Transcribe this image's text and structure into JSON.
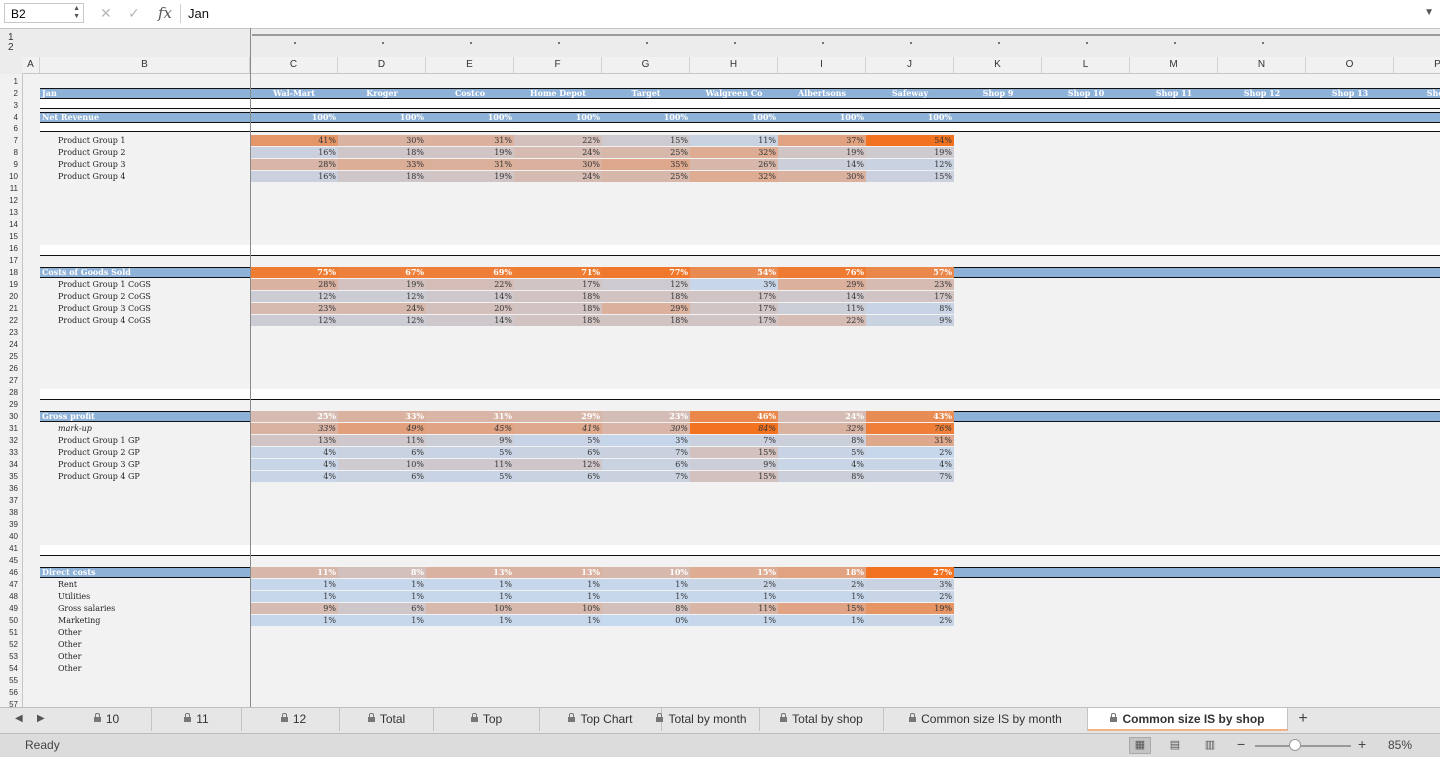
{
  "formula_bar": {
    "cell_ref": "B2",
    "formula": "Jan",
    "fx_label": "fx",
    "cancel_icon": "close-icon",
    "enter_icon": "check-icon"
  },
  "outline_levels": [
    "1",
    "2"
  ],
  "columns": [
    "A",
    "B",
    "C",
    "D",
    "E",
    "F",
    "G",
    "H",
    "I",
    "J",
    "K",
    "L",
    "M",
    "N",
    "O",
    "P"
  ],
  "rows": [
    "1",
    "2",
    "3",
    "4",
    "6",
    "7",
    "8",
    "9",
    "10",
    "11",
    "12",
    "13",
    "14",
    "15",
    "16",
    "17",
    "18",
    "19",
    "20",
    "21",
    "22",
    "23",
    "24",
    "25",
    "26",
    "27",
    "28",
    "29",
    "30",
    "31",
    "32",
    "33",
    "34",
    "35",
    "36",
    "37",
    "38",
    "39",
    "40",
    "41",
    "45",
    "46",
    "47",
    "48",
    "49",
    "50",
    "51",
    "52",
    "53",
    "54",
    "55",
    "56",
    "57"
  ],
  "header_row": {
    "label": "Jan",
    "shops": [
      "Wal-Mart",
      "Kroger",
      "Costco",
      "Home Depot",
      "Target",
      "Walgreen Co",
      "Albertsons",
      "Safeway",
      "Shop 9",
      "Shop 10",
      "Shop 11",
      "Shop 12",
      "Shop 13",
      "Shop"
    ]
  },
  "net_revenue": {
    "label": "Net Revenue",
    "values": [
      "100%",
      "100%",
      "100%",
      "100%",
      "100%",
      "100%",
      "100%",
      "100%"
    ],
    "items": [
      {
        "label": "Product Group 1",
        "values": [
          "41%",
          "30%",
          "31%",
          "22%",
          "15%",
          "11%",
          "37%",
          "54%"
        ],
        "heat": [
          0.7,
          0.45,
          0.47,
          0.3,
          0.18,
          0.08,
          0.6,
          1.0
        ]
      },
      {
        "label": "Product Group 2",
        "values": [
          "16%",
          "18%",
          "19%",
          "24%",
          "25%",
          "32%",
          "19%",
          "19%"
        ],
        "heat": [
          0.1,
          0.22,
          0.25,
          0.35,
          0.4,
          0.52,
          0.24,
          0.18
        ]
      },
      {
        "label": "Product Group 3",
        "values": [
          "28%",
          "33%",
          "31%",
          "30%",
          "35%",
          "26%",
          "14%",
          "12%"
        ],
        "heat": [
          0.42,
          0.5,
          0.48,
          0.46,
          0.55,
          0.4,
          0.12,
          0.08
        ]
      },
      {
        "label": "Product Group 4",
        "values": [
          "16%",
          "18%",
          "19%",
          "24%",
          "25%",
          "32%",
          "30%",
          "15%"
        ],
        "heat": [
          0.1,
          0.22,
          0.25,
          0.35,
          0.4,
          0.52,
          0.46,
          0.1
        ]
      }
    ]
  },
  "cogs": {
    "label": "Costs of Goods Sold",
    "values": [
      "75%",
      "67%",
      "69%",
      "71%",
      "77%",
      "54%",
      "76%",
      "57%"
    ],
    "heat": [
      0.92,
      0.88,
      0.9,
      0.92,
      0.95,
      0.8,
      0.93,
      0.82
    ],
    "items": [
      {
        "label": "Product Group 1 CoGS",
        "values": [
          "28%",
          "19%",
          "22%",
          "17%",
          "12%",
          "3%",
          "29%",
          "23%"
        ],
        "heat": [
          0.45,
          0.28,
          0.33,
          0.25,
          0.18,
          0.04,
          0.47,
          0.35
        ]
      },
      {
        "label": "Product Group 2 CoGS",
        "values": [
          "12%",
          "12%",
          "14%",
          "18%",
          "18%",
          "17%",
          "14%",
          "17%"
        ],
        "heat": [
          0.15,
          0.15,
          0.2,
          0.26,
          0.26,
          0.25,
          0.2,
          0.25
        ]
      },
      {
        "label": "Product Group 3 CoGS",
        "values": [
          "23%",
          "24%",
          "20%",
          "18%",
          "29%",
          "17%",
          "11%",
          "8%"
        ],
        "heat": [
          0.36,
          0.38,
          0.3,
          0.26,
          0.47,
          0.25,
          0.14,
          0.06
        ]
      },
      {
        "label": "Product Group 4 CoGS",
        "values": [
          "12%",
          "12%",
          "14%",
          "18%",
          "18%",
          "17%",
          "22%",
          "9%"
        ],
        "heat": [
          0.15,
          0.15,
          0.2,
          0.26,
          0.26,
          0.25,
          0.34,
          0.08
        ]
      }
    ]
  },
  "gross_profit": {
    "label": "Gross profit",
    "values": [
      "25%",
      "33%",
      "31%",
      "29%",
      "23%",
      "46%",
      "24%",
      "43%"
    ],
    "heat": [
      0.35,
      0.45,
      0.42,
      0.4,
      0.33,
      0.82,
      0.34,
      0.78
    ],
    "markup": {
      "label": "mark-up",
      "values": [
        "33%",
        "49%",
        "45%",
        "41%",
        "30%",
        "84%",
        "32%",
        "76%"
      ],
      "heat": [
        0.45,
        0.62,
        0.58,
        0.55,
        0.42,
        1.0,
        0.44,
        0.9
      ]
    },
    "items": [
      {
        "label": "Product Group 1 GP",
        "values": [
          "13%",
          "11%",
          "9%",
          "5%",
          "3%",
          "7%",
          "8%",
          "31%"
        ],
        "heat": [
          0.25,
          0.2,
          0.14,
          0.06,
          0.03,
          0.1,
          0.12,
          0.55
        ]
      },
      {
        "label": "Product Group 2 GP",
        "values": [
          "4%",
          "6%",
          "5%",
          "6%",
          "7%",
          "15%",
          "5%",
          "2%"
        ],
        "heat": [
          0.05,
          0.08,
          0.06,
          0.08,
          0.1,
          0.28,
          0.06,
          0.02
        ]
      },
      {
        "label": "Product Group 3 GP",
        "values": [
          "4%",
          "10%",
          "11%",
          "12%",
          "6%",
          "9%",
          "4%",
          "4%"
        ],
        "heat": [
          0.05,
          0.18,
          0.2,
          0.22,
          0.08,
          0.14,
          0.05,
          0.05
        ]
      },
      {
        "label": "Product Group 4 GP",
        "values": [
          "4%",
          "6%",
          "5%",
          "6%",
          "7%",
          "15%",
          "8%",
          "7%"
        ],
        "heat": [
          0.05,
          0.08,
          0.06,
          0.08,
          0.1,
          0.28,
          0.12,
          0.1
        ]
      }
    ]
  },
  "direct_costs": {
    "label": "Direct costs",
    "values": [
      "11%",
      "8%",
      "13%",
      "13%",
      "10%",
      "15%",
      "18%",
      "27%"
    ],
    "heat": [
      0.4,
      0.3,
      0.45,
      0.45,
      0.38,
      0.52,
      0.6,
      1.0
    ],
    "items": [
      {
        "label": "Rent",
        "values": [
          "1%",
          "1%",
          "1%",
          "1%",
          "1%",
          "2%",
          "2%",
          "3%"
        ],
        "heat": [
          0.02,
          0.02,
          0.02,
          0.02,
          0.02,
          0.05,
          0.05,
          0.08
        ]
      },
      {
        "label": "Utilities",
        "values": [
          "1%",
          "1%",
          "1%",
          "1%",
          "1%",
          "1%",
          "1%",
          "2%"
        ],
        "heat": [
          0.02,
          0.02,
          0.02,
          0.02,
          0.02,
          0.02,
          0.02,
          0.05
        ]
      },
      {
        "label": "Gross salaries",
        "values": [
          "9%",
          "6%",
          "10%",
          "10%",
          "8%",
          "11%",
          "15%",
          "19%"
        ],
        "heat": [
          0.35,
          0.22,
          0.38,
          0.38,
          0.3,
          0.42,
          0.58,
          0.72
        ]
      },
      {
        "label": "Marketing",
        "values": [
          "1%",
          "1%",
          "1%",
          "1%",
          "0%",
          "1%",
          "1%",
          "2%"
        ],
        "heat": [
          0.02,
          0.02,
          0.02,
          0.02,
          0.0,
          0.02,
          0.02,
          0.05
        ]
      },
      {
        "label": "Other",
        "values": [],
        "heat": []
      },
      {
        "label": "Other",
        "values": [],
        "heat": []
      },
      {
        "label": "Other",
        "values": [],
        "heat": []
      },
      {
        "label": "Other",
        "values": [],
        "heat": []
      }
    ]
  },
  "sheet_tabs": [
    {
      "label": "10",
      "locked": true,
      "active": false
    },
    {
      "label": "11",
      "locked": true,
      "active": false
    },
    {
      "label": "12",
      "locked": true,
      "active": false
    },
    {
      "label": "Total",
      "locked": true,
      "active": false
    },
    {
      "label": "Top",
      "locked": true,
      "active": false
    },
    {
      "label": "Top Chart",
      "locked": true,
      "active": false
    },
    {
      "label": "Total by month",
      "locked": true,
      "active": false
    },
    {
      "label": "Total by shop",
      "locked": true,
      "active": false
    },
    {
      "label": "Common size IS by month",
      "locked": true,
      "active": false
    },
    {
      "label": "Common size IS by shop",
      "locked": true,
      "active": true
    }
  ],
  "add_sheet_label": "+",
  "status": {
    "ready": "Ready",
    "zoom": "85%",
    "zoom_level": 0.42
  },
  "colors": {
    "header_band": "#8eb1d8",
    "heat_low": "#c5d9ef",
    "heat_mid": "#dcae98",
    "heat_high": "#f27220",
    "active_tab_underline": "#f4b183"
  }
}
